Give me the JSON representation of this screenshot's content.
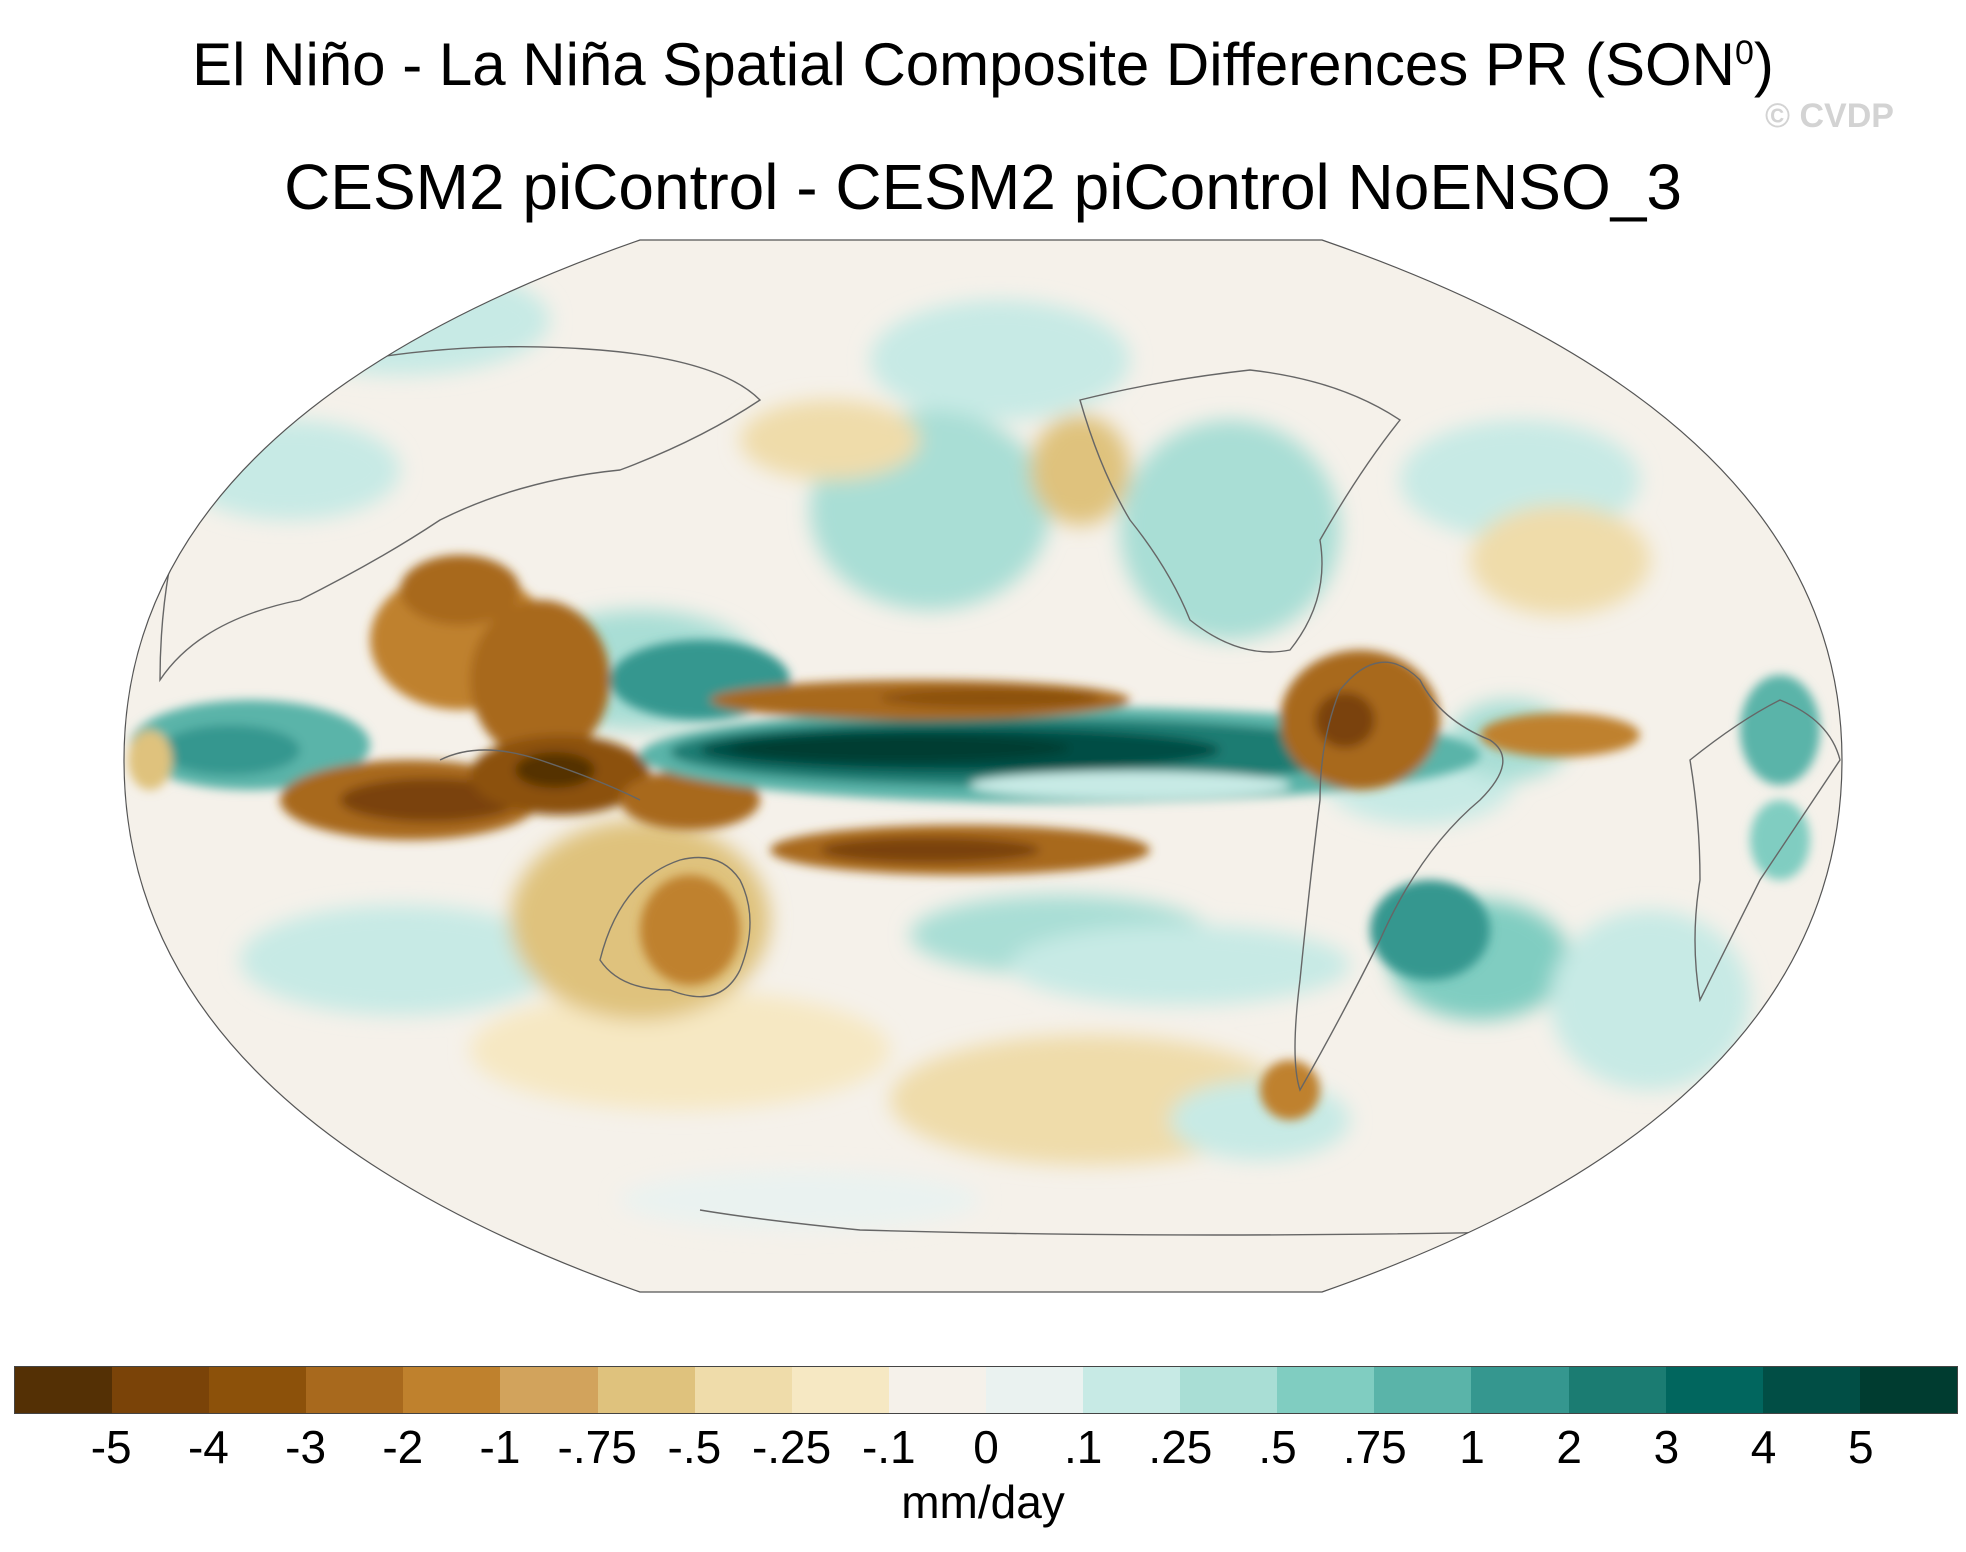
{
  "title": {
    "main_prefix": "El Niño - La Niña Spatial Composite Differences PR (SON",
    "superscript": "0",
    "main_suffix": ")",
    "subtitle": "CESM2 piControl - CESM2 piControl NoENSO_3"
  },
  "watermark": "© CVDP",
  "map": {
    "projection": "Robinson-like",
    "shading_note": "brown = drier, teal = wetter",
    "features": [
      {
        "name": "central-equatorial-pacific-wet-band",
        "sign": "positive",
        "strength": "strong"
      },
      {
        "name": "maritime-continent-dry",
        "sign": "negative",
        "strength": "strong"
      },
      {
        "name": "south-pacific-convergence-dry-band",
        "sign": "negative",
        "strength": "moderate"
      },
      {
        "name": "north-pacific-itcz-dry-band",
        "sign": "negative",
        "strength": "moderate"
      },
      {
        "name": "indian-ocean-wet",
        "sign": "positive",
        "strength": "moderate"
      },
      {
        "name": "northern-south-america-dry",
        "sign": "negative",
        "strength": "moderate"
      },
      {
        "name": "australia-dry",
        "sign": "negative",
        "strength": "weak"
      },
      {
        "name": "southeast-south-america-wet",
        "sign": "positive",
        "strength": "moderate"
      },
      {
        "name": "tropical-atlantic-dry",
        "sign": "negative",
        "strength": "moderate"
      },
      {
        "name": "east-africa-wet",
        "sign": "positive",
        "strength": "moderate"
      }
    ]
  },
  "colorbar": {
    "colors": [
      "#543005",
      "#7a4308",
      "#8c510a",
      "#a8691d",
      "#bf812d",
      "#d2a35c",
      "#dfc27d",
      "#efdcaa",
      "#f6e8c3",
      "#f5f1ea",
      "#eaf2f0",
      "#c7eae5",
      "#a9ded5",
      "#80cdc1",
      "#5ab4a9",
      "#35978f",
      "#1b7c72",
      "#01665e",
      "#014e45",
      "#003c30"
    ],
    "tick_labels": [
      "-5",
      "-4",
      "-3",
      "-2",
      "-1",
      "-.75",
      "-.5",
      "-.25",
      "-.1",
      "0",
      ".1",
      ".25",
      ".5",
      ".75",
      "1",
      "2",
      "3",
      "4",
      "5"
    ],
    "units": "mm/day"
  }
}
